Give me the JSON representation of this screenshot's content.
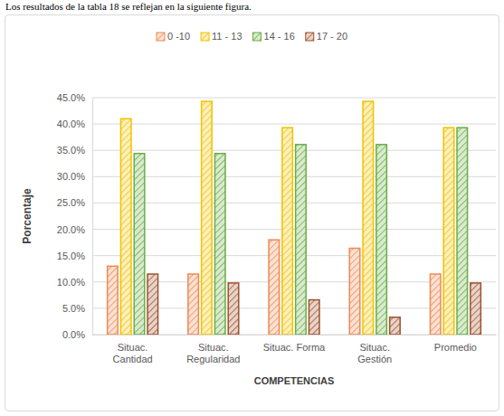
{
  "chart_data": {
    "type": "bar",
    "annotations": [
      "Los resultados de la tabla 18 se reflejan en la siguiente figura."
    ],
    "x_label": "COMPETENCIAS",
    "y_label": "Porcentaje",
    "categories": [
      "Situac. Cantidad",
      "Situac. Regularidad",
      "Situac. Forma",
      "Situac. Gestión",
      "Promedio"
    ],
    "series": [
      {
        "name": "0 -10",
        "color": "#ee8a55",
        "values": [
          13.0,
          11.5,
          18.0,
          16.4,
          11.5
        ]
      },
      {
        "name": "11 - 13",
        "color": "#f2c200",
        "values": [
          41.0,
          44.3,
          39.3,
          44.3,
          39.3
        ]
      },
      {
        "name": "14 - 16",
        "color": "#6aad45",
        "values": [
          34.4,
          34.4,
          36.1,
          36.1,
          39.3
        ]
      },
      {
        "name": "17 - 20",
        "color": "#a0522d",
        "values": [
          11.5,
          9.8,
          6.6,
          3.3,
          9.8
        ]
      }
    ],
    "ylim": [
      0,
      45
    ],
    "yticks": [
      {
        "value": 0,
        "label": "0.0%"
      },
      {
        "value": 5,
        "label": "5.0%"
      },
      {
        "value": 10,
        "label": "10.0%"
      },
      {
        "value": 15,
        "label": "15.0%"
      },
      {
        "value": 20,
        "label": "20.0%"
      },
      {
        "value": 25,
        "label": "25.0%"
      },
      {
        "value": 30,
        "label": "30.0%"
      },
      {
        "value": 35,
        "label": "35.0%"
      },
      {
        "value": 40,
        "label": "40.0%"
      },
      {
        "value": 45,
        "label": "45.0%"
      }
    ],
    "grid": true,
    "legend": "top"
  }
}
